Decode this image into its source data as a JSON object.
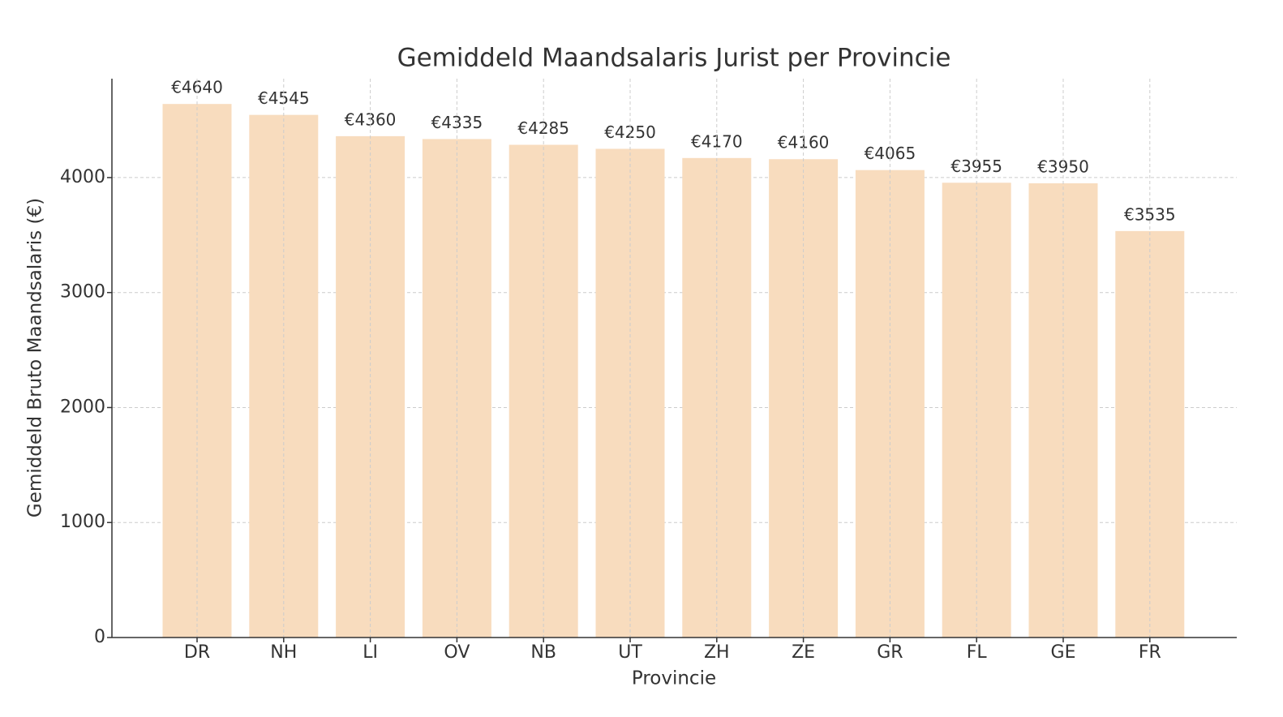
{
  "chart_data": {
    "type": "bar",
    "title": "Gemiddeld Maandsalaris Jurist per Provincie",
    "x_label": "Provincie",
    "y_label": "Gemiddeld Bruto Maandsalaris (€)",
    "categories": [
      "DR",
      "NH",
      "LI",
      "OV",
      "NB",
      "UT",
      "ZH",
      "ZE",
      "GR",
      "FL",
      "GE",
      "FR"
    ],
    "values": [
      4640,
      4545,
      4360,
      4335,
      4285,
      4250,
      4170,
      4160,
      4065,
      3955,
      3950,
      3535
    ],
    "value_labels": [
      "€4640",
      "€4545",
      "€4360",
      "€4335",
      "€4285",
      "€4250",
      "€4170",
      "€4160",
      "€4065",
      "€3955",
      "€3950",
      "€3535"
    ],
    "color": "#f8dcbe",
    "ylim": [
      0,
      4860
    ],
    "yticks": [
      0,
      1000,
      2000,
      3000,
      4000
    ],
    "grid": true
  }
}
